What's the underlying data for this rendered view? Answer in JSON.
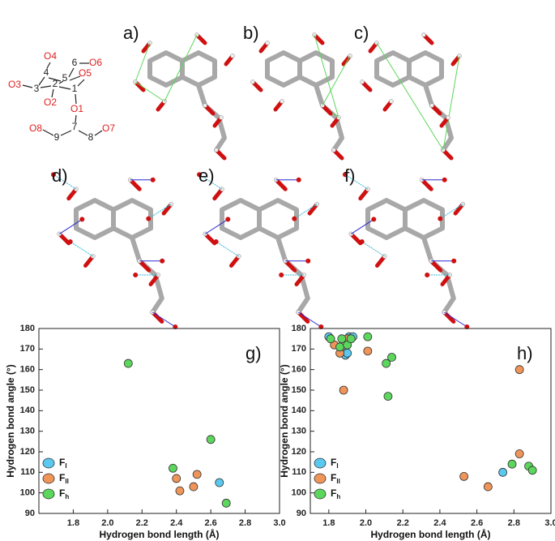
{
  "scheme": {
    "oxygen_labels": [
      "O4",
      "O6",
      "O5",
      "O3",
      "O2",
      "O1",
      "O8",
      "O7"
    ],
    "carbon_labels": [
      "6",
      "4",
      "5",
      "3",
      "2",
      "1",
      "7",
      "9",
      "8"
    ]
  },
  "panels": [
    "a)",
    "b)",
    "c)",
    "d)",
    "e)",
    "f)"
  ],
  "chart_data": [
    {
      "type": "scatter",
      "panel_label": "g)",
      "x_label": "Hydrogen bond length (Å)",
      "y_label": "Hydrogen bond angle (°)",
      "xlim": [
        1.6,
        3.0
      ],
      "ylim": [
        90,
        180
      ],
      "xticks": [
        1.8,
        {
          "value": 2,
          "label": "2.0"
        },
        2.2,
        2.4,
        2.6,
        2.8,
        {
          "value": 3,
          "label": "3.0"
        }
      ],
      "yticks": [
        90,
        100,
        110,
        120,
        130,
        140,
        150,
        160,
        170,
        180
      ],
      "legend": "lower left",
      "series": [
        {
          "name": "F",
          "subscript": "I",
          "color": "#5bc8f0",
          "x": [
            2.65
          ],
          "values": [
            105
          ]
        },
        {
          "name": "F",
          "subscript": "II",
          "color": "#f0955a",
          "x": [
            2.4,
            2.42,
            2.5,
            2.52
          ],
          "values": [
            107,
            101,
            103,
            109
          ]
        },
        {
          "name": "F",
          "subscript": "h",
          "color": "#5cd65c",
          "x": [
            2.12,
            2.38,
            2.6,
            2.69
          ],
          "values": [
            163,
            112,
            126,
            95
          ]
        }
      ]
    },
    {
      "type": "scatter",
      "panel_label": "h)",
      "x_label": "Hydrogen bond length (Å)",
      "y_label": "Hydrogen bond angle (°)",
      "xlim": [
        1.7,
        3.0
      ],
      "ylim": [
        90,
        180
      ],
      "xticks": [
        1.8,
        {
          "value": 2,
          "label": "2.0"
        },
        2.2,
        2.4,
        2.6,
        2.8,
        {
          "value": 3,
          "label": "3.0"
        }
      ],
      "yticks": [
        90,
        100,
        110,
        120,
        130,
        140,
        150,
        160,
        170,
        180
      ],
      "legend": "lower left",
      "series": [
        {
          "name": "F",
          "subscript": "I",
          "color": "#5bc8f0",
          "x": [
            1.8,
            1.88,
            1.89,
            1.9,
            1.91,
            1.93,
            2.74
          ],
          "values": [
            176,
            168,
            167,
            168,
            176,
            176,
            110
          ]
        },
        {
          "name": "F",
          "subscript": "II",
          "color": "#f0955a",
          "x": [
            1.83,
            1.86,
            1.88,
            1.9,
            2.01,
            2.53,
            2.66,
            2.83,
            2.83
          ],
          "values": [
            172,
            168,
            150,
            175,
            169,
            108,
            103,
            160,
            119
          ]
        },
        {
          "name": "F",
          "subscript": "h",
          "color": "#5cd65c",
          "x": [
            1.81,
            1.86,
            1.87,
            1.9,
            1.92,
            2.01,
            2.11,
            2.12,
            2.14,
            2.79,
            2.88,
            2.9
          ],
          "values": [
            175,
            171,
            175,
            172,
            175,
            176,
            163,
            147,
            166,
            114,
            113,
            111
          ]
        }
      ]
    }
  ]
}
